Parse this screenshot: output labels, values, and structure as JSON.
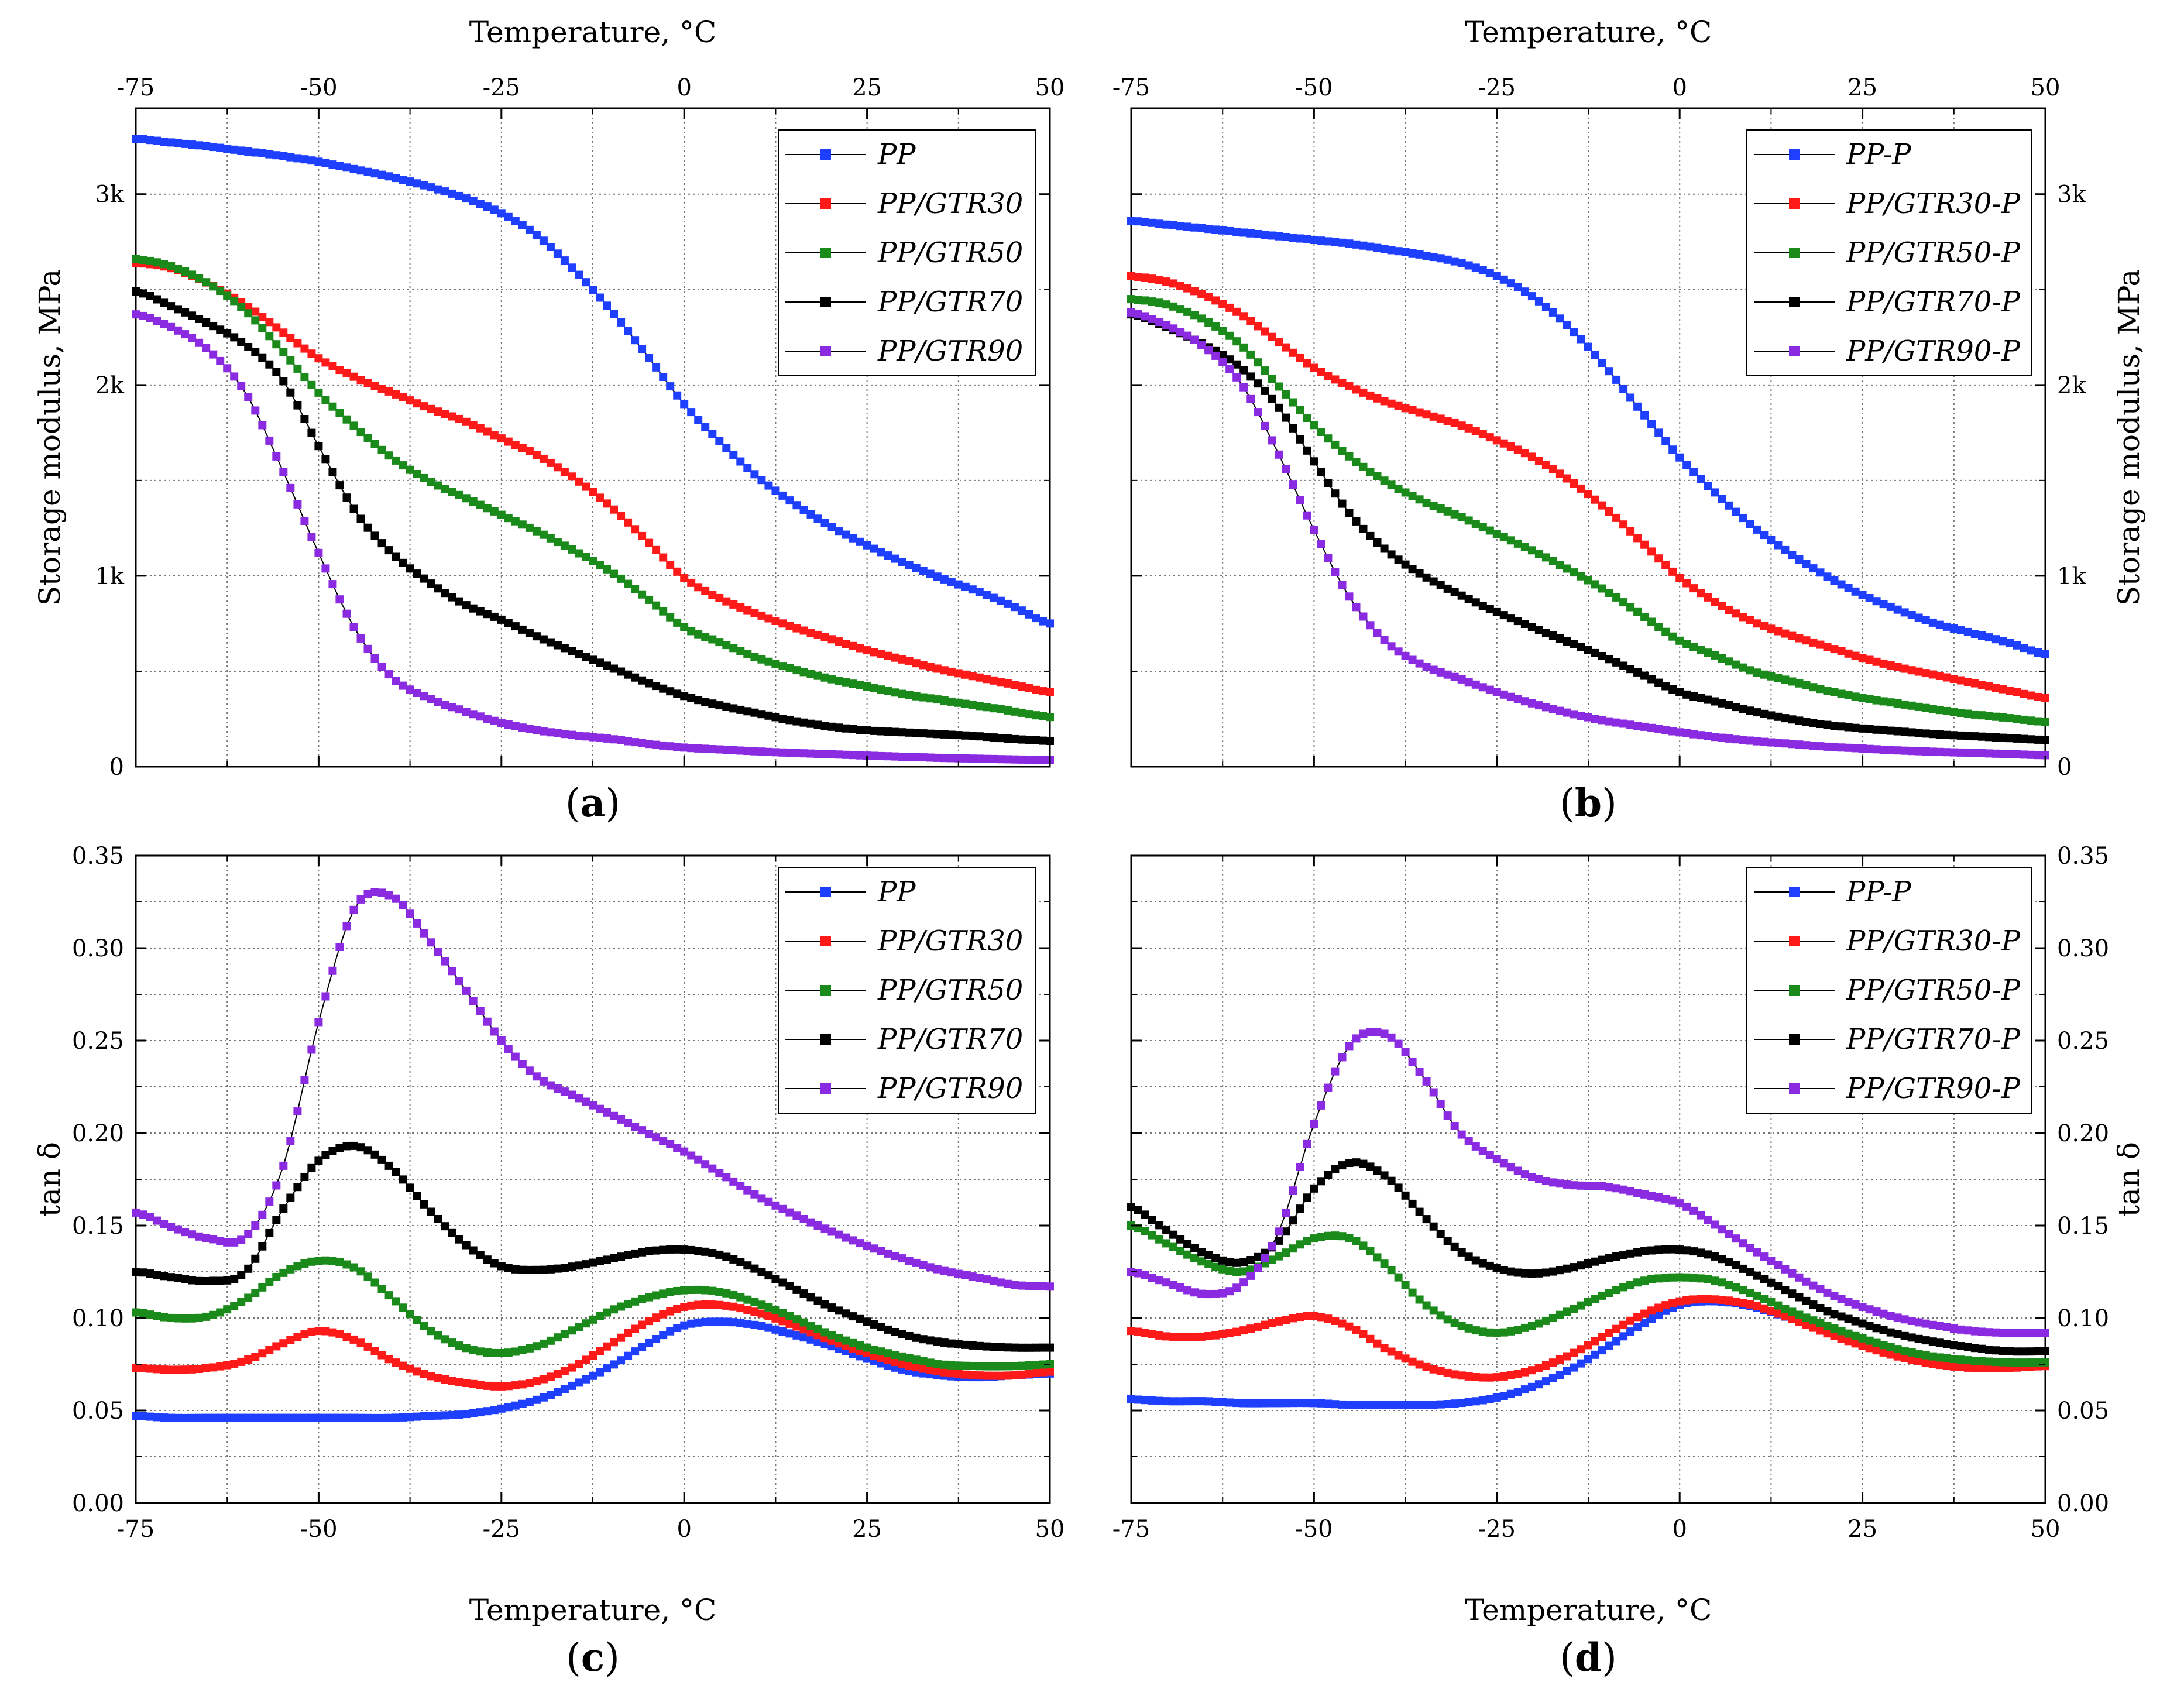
{
  "chart_data": [
    {
      "id": "a",
      "type": "scatter",
      "panel_label": "(a)",
      "panel_label_parts": [
        "(",
        "a",
        ")"
      ],
      "title": "",
      "xlabel": "Temperature, °C",
      "ylabel": "Storage modulus, MPa",
      "x_ticks": [
        "-75",
        "-50",
        "-25",
        "0",
        "25",
        "50"
      ],
      "y_ticks": [
        "0",
        "1k",
        "2k",
        "3k"
      ],
      "xlim": [
        -75,
        50
      ],
      "ylim": [
        0,
        3450
      ],
      "grid": true,
      "legend_position": "top-right",
      "x_sample": [
        -75,
        -70,
        -65,
        -60,
        -55,
        -50,
        -45,
        -40,
        -35,
        -30,
        -25,
        -20,
        -15,
        -10,
        -5,
        0,
        5,
        10,
        15,
        20,
        25,
        30,
        35,
        40,
        45,
        50
      ],
      "series": [
        {
          "name": "PP",
          "color": "#1f3fff",
          "values": [
            3290,
            3270,
            3250,
            3225,
            3200,
            3170,
            3130,
            3090,
            3040,
            2980,
            2900,
            2780,
            2600,
            2390,
            2150,
            1900,
            1700,
            1520,
            1380,
            1260,
            1160,
            1070,
            990,
            920,
            840,
            750
          ]
        },
        {
          "name": "PP/GTR30",
          "color": "#ff1a1a",
          "values": [
            2640,
            2610,
            2530,
            2420,
            2280,
            2140,
            2040,
            1960,
            1880,
            1810,
            1720,
            1630,
            1510,
            1360,
            1180,
            990,
            880,
            800,
            730,
            670,
            610,
            560,
            510,
            470,
            430,
            390
          ]
        },
        {
          "name": "PP/GTR50",
          "color": "#1a8a1a",
          "values": [
            2660,
            2620,
            2530,
            2390,
            2180,
            1960,
            1780,
            1620,
            1500,
            1410,
            1320,
            1230,
            1130,
            1020,
            880,
            730,
            650,
            570,
            510,
            460,
            420,
            380,
            350,
            320,
            290,
            260
          ]
        },
        {
          "name": "PP/GTR70",
          "color": "#000000",
          "values": [
            2490,
            2410,
            2320,
            2210,
            2030,
            1680,
            1340,
            1120,
            970,
            850,
            770,
            680,
            600,
            520,
            440,
            370,
            320,
            280,
            240,
            210,
            190,
            180,
            170,
            160,
            145,
            135
          ]
        },
        {
          "name": "PP/GTR90",
          "color": "#8a2be2",
          "values": [
            2370,
            2300,
            2180,
            1960,
            1560,
            1120,
            720,
            470,
            360,
            290,
            230,
            190,
            165,
            145,
            120,
            100,
            90,
            80,
            72,
            65,
            58,
            52,
            46,
            42,
            38,
            35
          ]
        }
      ]
    },
    {
      "id": "b",
      "type": "scatter",
      "panel_label": "(b)",
      "panel_label_parts": [
        "(",
        "b",
        ")"
      ],
      "title": "",
      "xlabel": "Temperature, °C",
      "ylabel": "Storage modulus, MPa",
      "x_ticks": [
        "-75",
        "-50",
        "-25",
        "0",
        "25",
        "50"
      ],
      "y_ticks": [
        "0",
        "1k",
        "2k",
        "3k"
      ],
      "xlim": [
        -75,
        50
      ],
      "ylim": [
        0,
        3450
      ],
      "grid": true,
      "legend_position": "top-right",
      "x_sample": [
        -75,
        -70,
        -65,
        -60,
        -55,
        -50,
        -45,
        -40,
        -35,
        -30,
        -25,
        -20,
        -15,
        -10,
        -5,
        0,
        5,
        10,
        15,
        20,
        25,
        30,
        35,
        40,
        45,
        50
      ],
      "series": [
        {
          "name": "PP-P",
          "color": "#1f3fff",
          "values": [
            2860,
            2840,
            2820,
            2800,
            2780,
            2760,
            2740,
            2710,
            2680,
            2640,
            2570,
            2460,
            2300,
            2090,
            1850,
            1620,
            1430,
            1260,
            1120,
            1000,
            900,
            820,
            750,
            700,
            650,
            590
          ]
        },
        {
          "name": "PP/GTR30-P",
          "color": "#ff1a1a",
          "values": [
            2570,
            2540,
            2470,
            2370,
            2230,
            2090,
            1990,
            1910,
            1850,
            1790,
            1710,
            1620,
            1500,
            1350,
            1170,
            990,
            860,
            760,
            690,
            630,
            570,
            520,
            480,
            440,
            400,
            360
          ]
        },
        {
          "name": "PP/GTR50-P",
          "color": "#1a8a1a",
          "values": [
            2450,
            2420,
            2340,
            2210,
            2000,
            1790,
            1620,
            1490,
            1390,
            1310,
            1220,
            1130,
            1030,
            920,
            790,
            660,
            580,
            500,
            450,
            400,
            360,
            330,
            300,
            275,
            255,
            235
          ]
        },
        {
          "name": "PP/GTR70-P",
          "color": "#000000",
          "values": [
            2370,
            2300,
            2210,
            2090,
            1890,
            1600,
            1320,
            1130,
            1000,
            900,
            810,
            730,
            650,
            570,
            480,
            390,
            340,
            290,
            250,
            220,
            200,
            185,
            170,
            160,
            150,
            140
          ]
        },
        {
          "name": "PP/GTR90-P",
          "color": "#8a2be2",
          "values": [
            2380,
            2310,
            2200,
            2010,
            1650,
            1240,
            880,
            650,
            530,
            460,
            390,
            330,
            280,
            240,
            210,
            180,
            155,
            135,
            120,
            105,
            95,
            85,
            78,
            72,
            66,
            60
          ]
        }
      ]
    },
    {
      "id": "c",
      "type": "scatter",
      "panel_label": "(c)",
      "panel_label_parts": [
        "(",
        "c",
        ")"
      ],
      "title": "",
      "xlabel": "Temperature, °C",
      "ylabel": "tan δ",
      "x_ticks": [
        "-75",
        "-50",
        "-25",
        "0",
        "25",
        "50"
      ],
      "y_ticks": [
        "0.00",
        "0.05",
        "0.10",
        "0.15",
        "0.20",
        "0.25",
        "0.30",
        "0.35"
      ],
      "xlim": [
        -75,
        50
      ],
      "ylim": [
        0,
        0.35
      ],
      "grid": true,
      "legend_position": "top-right",
      "x_sample": [
        -75,
        -70,
        -65,
        -60,
        -55,
        -50,
        -45,
        -40,
        -35,
        -30,
        -25,
        -20,
        -15,
        -10,
        -5,
        0,
        5,
        10,
        15,
        20,
        25,
        30,
        35,
        40,
        45,
        50
      ],
      "series": [
        {
          "name": "PP",
          "color": "#1f3fff",
          "values": [
            0.047,
            0.046,
            0.046,
            0.046,
            0.046,
            0.046,
            0.046,
            0.046,
            0.047,
            0.048,
            0.051,
            0.056,
            0.064,
            0.074,
            0.086,
            0.096,
            0.098,
            0.096,
            0.091,
            0.085,
            0.078,
            0.072,
            0.069,
            0.068,
            0.069,
            0.07
          ]
        },
        {
          "name": "PP/GTR30",
          "color": "#ff1a1a",
          "values": [
            0.073,
            0.072,
            0.073,
            0.077,
            0.086,
            0.093,
            0.088,
            0.077,
            0.069,
            0.065,
            0.063,
            0.066,
            0.074,
            0.086,
            0.098,
            0.106,
            0.107,
            0.103,
            0.096,
            0.088,
            0.081,
            0.075,
            0.071,
            0.069,
            0.069,
            0.071
          ]
        },
        {
          "name": "PP/GTR50",
          "color": "#1a8a1a",
          "values": [
            0.103,
            0.1,
            0.101,
            0.11,
            0.124,
            0.131,
            0.127,
            0.111,
            0.094,
            0.084,
            0.081,
            0.085,
            0.094,
            0.104,
            0.111,
            0.115,
            0.114,
            0.108,
            0.1,
            0.091,
            0.084,
            0.079,
            0.075,
            0.074,
            0.074,
            0.075
          ]
        },
        {
          "name": "PP/GTR70",
          "color": "#000000",
          "values": [
            0.125,
            0.122,
            0.12,
            0.125,
            0.158,
            0.185,
            0.193,
            0.181,
            0.159,
            0.14,
            0.128,
            0.126,
            0.128,
            0.132,
            0.136,
            0.137,
            0.134,
            0.126,
            0.116,
            0.106,
            0.098,
            0.091,
            0.087,
            0.085,
            0.084,
            0.084
          ]
        },
        {
          "name": "PP/GTR90",
          "color": "#8a2be2",
          "values": [
            0.157,
            0.149,
            0.143,
            0.144,
            0.18,
            0.26,
            0.322,
            0.328,
            0.305,
            0.278,
            0.25,
            0.23,
            0.22,
            0.21,
            0.2,
            0.19,
            0.178,
            0.166,
            0.156,
            0.147,
            0.139,
            0.132,
            0.126,
            0.122,
            0.118,
            0.117
          ]
        }
      ]
    },
    {
      "id": "d",
      "type": "scatter",
      "panel_label": "(d)",
      "panel_label_parts": [
        "(",
        "d",
        ")"
      ],
      "title": "",
      "xlabel": "Temperature, °C",
      "ylabel": "tan δ",
      "x_ticks": [
        "-75",
        "-50",
        "-25",
        "0",
        "25",
        "50"
      ],
      "y_ticks": [
        "0.00",
        "0.05",
        "0.10",
        "0.15",
        "0.20",
        "0.25",
        "0.30",
        "0.35"
      ],
      "xlim": [
        -75,
        50
      ],
      "ylim": [
        0,
        0.35
      ],
      "grid": true,
      "legend_position": "top-right",
      "x_sample": [
        -75,
        -70,
        -65,
        -60,
        -55,
        -50,
        -45,
        -40,
        -35,
        -30,
        -25,
        -20,
        -15,
        -10,
        -5,
        0,
        5,
        10,
        15,
        20,
        25,
        30,
        35,
        40,
        45,
        50
      ],
      "series": [
        {
          "name": "PP-P",
          "color": "#1f3fff",
          "values": [
            0.056,
            0.055,
            0.055,
            0.054,
            0.054,
            0.054,
            0.053,
            0.053,
            0.053,
            0.054,
            0.057,
            0.063,
            0.072,
            0.084,
            0.097,
            0.107,
            0.109,
            0.106,
            0.1,
            0.093,
            0.086,
            0.08,
            0.076,
            0.074,
            0.074,
            0.075
          ]
        },
        {
          "name": "PP/GTR30-P",
          "color": "#ff1a1a",
          "values": [
            0.093,
            0.09,
            0.09,
            0.093,
            0.098,
            0.101,
            0.095,
            0.083,
            0.074,
            0.069,
            0.068,
            0.072,
            0.08,
            0.091,
            0.102,
            0.109,
            0.11,
            0.107,
            0.1,
            0.092,
            0.085,
            0.079,
            0.075,
            0.073,
            0.073,
            0.074
          ]
        },
        {
          "name": "PP/GTR50-P",
          "color": "#1a8a1a",
          "values": [
            0.15,
            0.14,
            0.13,
            0.125,
            0.133,
            0.143,
            0.143,
            0.128,
            0.108,
            0.096,
            0.092,
            0.096,
            0.104,
            0.113,
            0.12,
            0.122,
            0.12,
            0.113,
            0.104,
            0.096,
            0.089,
            0.083,
            0.079,
            0.077,
            0.076,
            0.076
          ]
        },
        {
          "name": "PP/GTR70-P",
          "color": "#000000",
          "values": [
            0.16,
            0.147,
            0.135,
            0.13,
            0.141,
            0.17,
            0.184,
            0.176,
            0.155,
            0.136,
            0.127,
            0.124,
            0.127,
            0.132,
            0.136,
            0.137,
            0.133,
            0.124,
            0.114,
            0.104,
            0.097,
            0.091,
            0.087,
            0.084,
            0.082,
            0.082
          ]
        },
        {
          "name": "PP/GTR90-P",
          "color": "#8a2be2",
          "values": [
            0.125,
            0.119,
            0.113,
            0.118,
            0.145,
            0.205,
            0.248,
            0.253,
            0.23,
            0.2,
            0.186,
            0.176,
            0.172,
            0.171,
            0.167,
            0.162,
            0.15,
            0.137,
            0.125,
            0.114,
            0.106,
            0.1,
            0.096,
            0.093,
            0.092,
            0.092
          ]
        }
      ]
    }
  ]
}
